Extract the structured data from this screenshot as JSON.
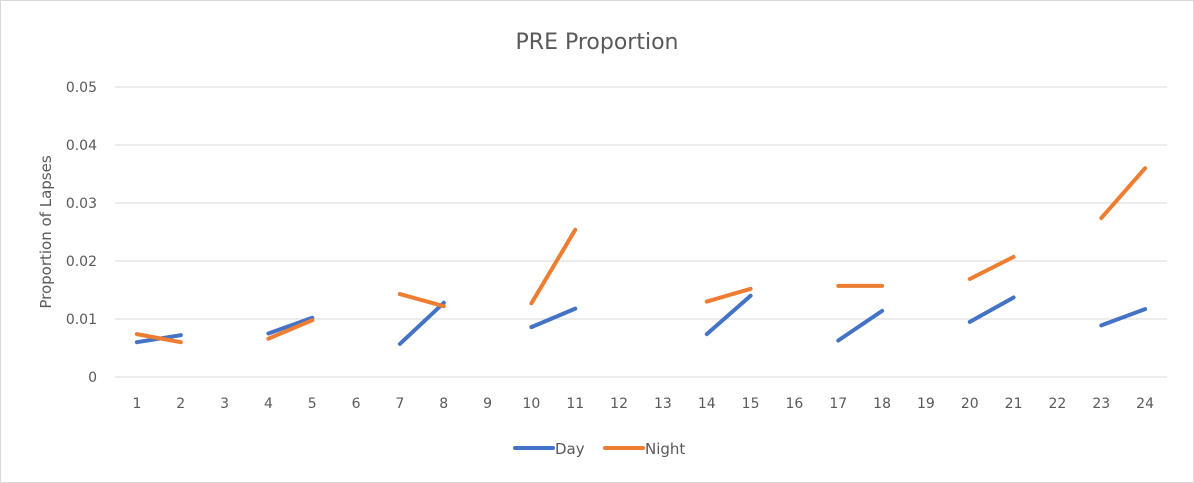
{
  "chart_data": {
    "type": "line",
    "title": "PRE Proportion",
    "xlabel": "",
    "ylabel": "Proportion of Lapses",
    "categories": [
      "1",
      "2",
      "3",
      "4",
      "5",
      "6",
      "7",
      "8",
      "9",
      "10",
      "11",
      "12",
      "13",
      "14",
      "15",
      "16",
      "17",
      "18",
      "19",
      "20",
      "21",
      "22",
      "23",
      "24"
    ],
    "yticks": [
      "0",
      "0.01",
      "0.02",
      "0.03",
      "0.04",
      "0.05"
    ],
    "ylim": [
      0,
      0.05
    ],
    "grid": true,
    "legend_position": "bottom",
    "series": [
      {
        "name": "Day",
        "color": "#4472c4",
        "values": [
          0.006,
          0.0072,
          null,
          0.0075,
          0.0102,
          null,
          0.0057,
          0.0128,
          null,
          0.0086,
          0.0118,
          null,
          null,
          0.0074,
          0.014,
          null,
          0.0063,
          0.0114,
          null,
          0.0095,
          0.0137,
          null,
          0.0089,
          0.0117
        ]
      },
      {
        "name": "Night",
        "color": "#ed7d31",
        "values": [
          0.0074,
          0.006,
          null,
          0.0066,
          0.0098,
          null,
          0.0143,
          0.0122,
          null,
          0.0127,
          0.0254,
          null,
          null,
          0.013,
          0.0152,
          null,
          0.0157,
          0.0157,
          null,
          0.0169,
          0.0207,
          null,
          0.0274,
          0.036
        ]
      }
    ]
  }
}
